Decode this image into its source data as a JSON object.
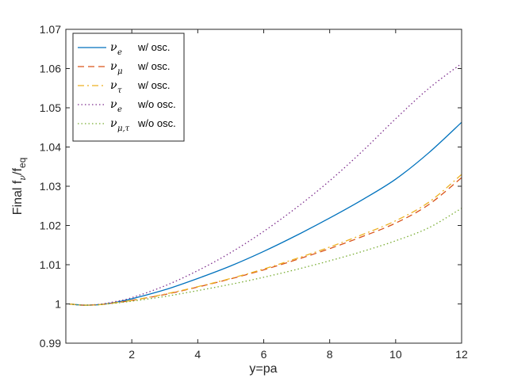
{
  "chart_data": {
    "type": "line",
    "title": "",
    "xlabel": "y=pa",
    "ylabel": {
      "main": "Final f",
      "sub1": "ν",
      "mid": "/f",
      "sub2": "eq"
    },
    "xlim": [
      0,
      12
    ],
    "ylim": [
      0.99,
      1.07
    ],
    "xticks": [
      2,
      4,
      6,
      8,
      10,
      12
    ],
    "xtick_labels": [
      "2",
      "4",
      "6",
      "8",
      "10",
      "12"
    ],
    "yticks": [
      0.99,
      1.0,
      1.01,
      1.02,
      1.03,
      1.04,
      1.05,
      1.06,
      1.07
    ],
    "ytick_labels": [
      "0.99",
      "1",
      "1.01",
      "1.02",
      "1.03",
      "1.04",
      "1.05",
      "1.06",
      "1.07"
    ],
    "legend_position": "top-left",
    "x": [
      0.1,
      0.5,
      1,
      1.5,
      2,
      3,
      4,
      5,
      6,
      7,
      8,
      9,
      10,
      11,
      12
    ],
    "series": [
      {
        "name": "nu_e w/ osc.",
        "symbol": "ν",
        "subscript": "e",
        "label": "w/ osc.",
        "color": "#0072BD",
        "dash": "solid",
        "values": [
          1.0,
          0.9997,
          0.9998,
          1.0004,
          1.0013,
          1.0036,
          1.0065,
          1.0097,
          1.0134,
          1.0175,
          1.0219,
          1.0266,
          1.0318,
          1.0385,
          1.0463
        ]
      },
      {
        "name": "nu_mu w/ osc.",
        "symbol": "ν",
        "subscript": "μ",
        "label": "w/ osc.",
        "color": "#D95319",
        "dash": "dash",
        "values": [
          1.0,
          0.9997,
          0.9998,
          1.0003,
          1.0009,
          1.0024,
          1.0043,
          1.0064,
          1.0087,
          1.0113,
          1.0141,
          1.0172,
          1.0206,
          1.0253,
          1.0322
        ]
      },
      {
        "name": "nu_tau w/ osc.",
        "symbol": "ν",
        "subscript": "τ",
        "label": "w/ osc.",
        "color": "#EDB120",
        "dash": "dashdot",
        "values": [
          1.0,
          0.9997,
          0.9998,
          1.0003,
          1.0009,
          1.0025,
          1.0044,
          1.0065,
          1.0089,
          1.0116,
          1.0145,
          1.0177,
          1.0212,
          1.0259,
          1.033
        ]
      },
      {
        "name": "nu_e w/o osc.",
        "symbol": "ν",
        "subscript": "e",
        "label": "w/o osc.",
        "color": "#7E2F8E",
        "dash": "dot",
        "values": [
          1.0,
          0.9997,
          0.9999,
          1.0006,
          1.0016,
          1.0046,
          1.0085,
          1.0131,
          1.0185,
          1.0246,
          1.0314,
          1.039,
          1.0472,
          1.0549,
          1.0613
        ]
      },
      {
        "name": "nu_mu,tau w/o osc.",
        "symbol": "ν",
        "subscript": "μ,τ",
        "label": "w/o osc.",
        "color": "#77AC30",
        "dash": "dot",
        "values": [
          1.0,
          0.9997,
          0.9998,
          1.0002,
          1.0007,
          1.0019,
          1.0034,
          1.005,
          1.0068,
          1.0088,
          1.011,
          1.0134,
          1.0161,
          1.0194,
          1.0244
        ]
      }
    ]
  }
}
